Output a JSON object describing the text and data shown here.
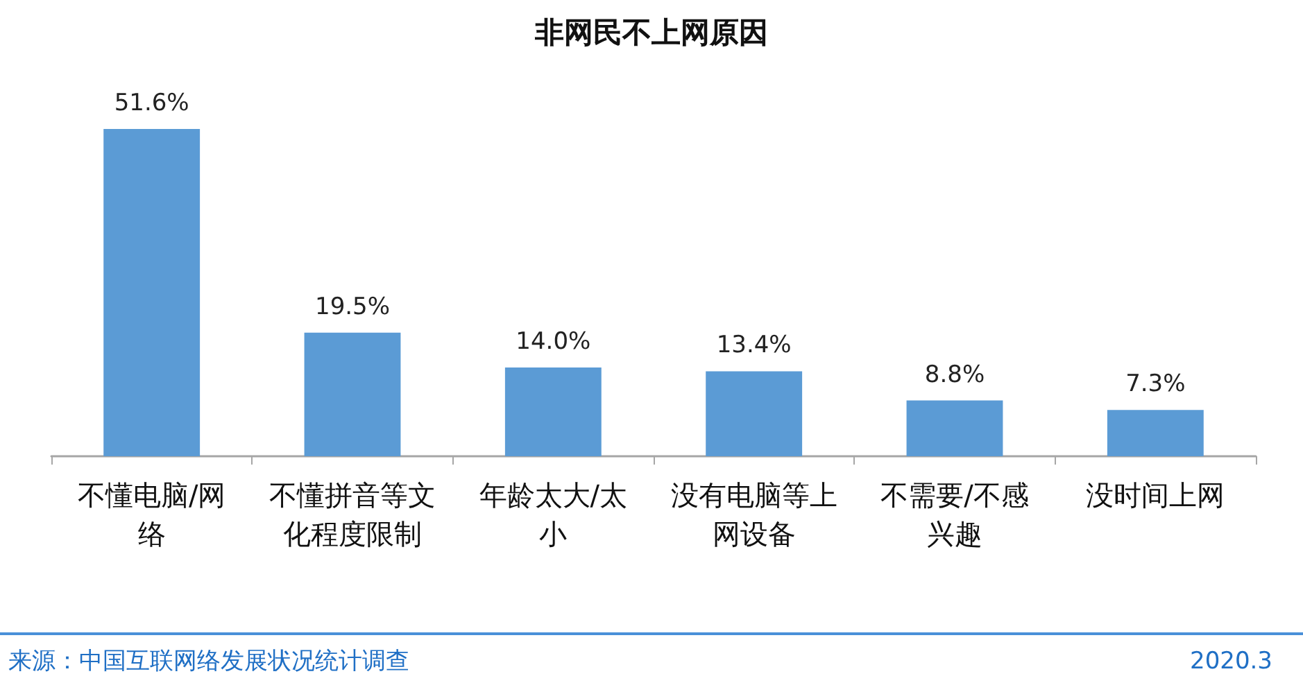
{
  "chart_data": {
    "type": "bar",
    "title": "非网民不上网原因",
    "categories": [
      "不懂电脑/网络",
      "不懂拼音等文化程度限制",
      "年龄太大/太小",
      "没有电脑等上网设备",
      "不需要/不感兴趣",
      "没时间上网"
    ],
    "values": [
      51.6,
      19.5,
      14.0,
      13.4,
      8.8,
      7.3
    ],
    "color": "#5b9bd5",
    "value_labels": [
      "51.6%",
      "19.5%",
      "14.0%",
      "13.4%",
      "8.8%",
      "7.3%"
    ],
    "annotations": [
      "来源：中国互联网络发展状况统计调查",
      "2020.3"
    ]
  }
}
